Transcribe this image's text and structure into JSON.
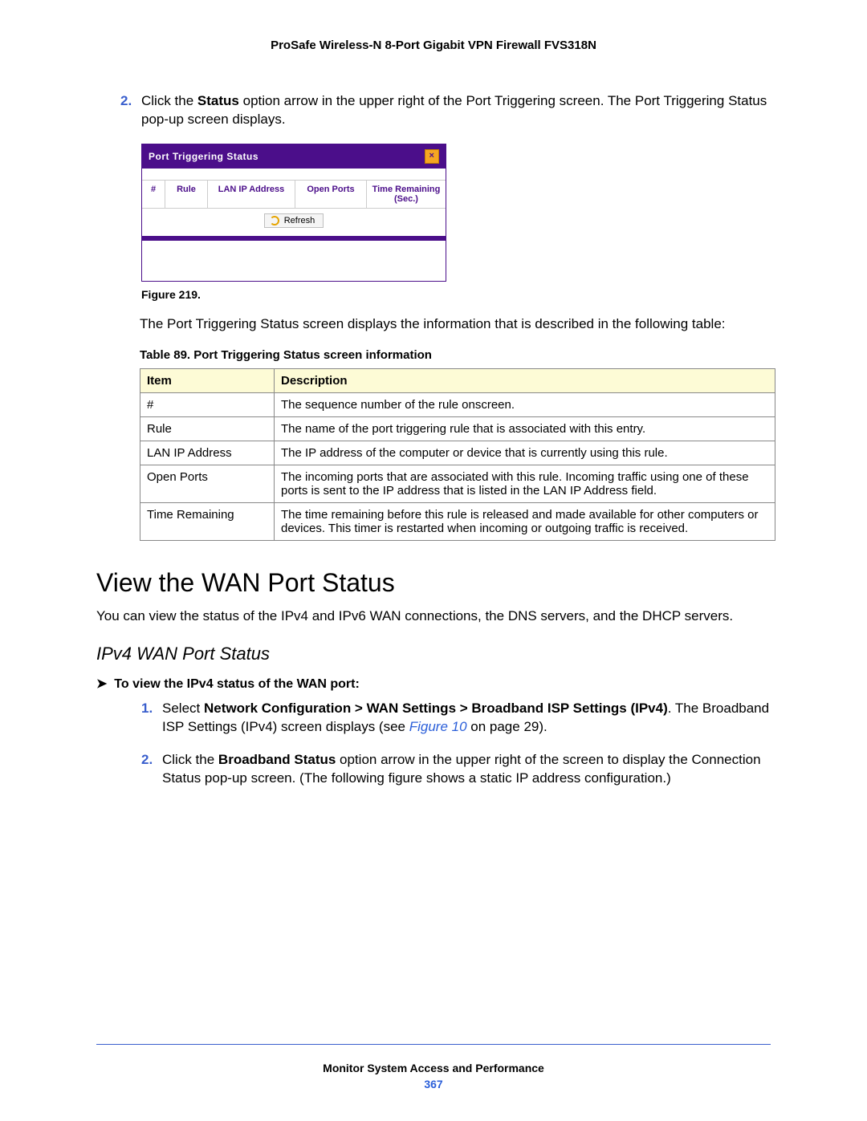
{
  "doc_title": "ProSafe Wireless-N 8-Port Gigabit VPN Firewall FVS318N",
  "step2": {
    "num": "2.",
    "pre": "Click the ",
    "bold": "Status",
    "post": " option arrow in the upper right of the Port Triggering screen. The Port Triggering Status pop-up screen displays."
  },
  "popup": {
    "title": "Port Triggering Status",
    "close": "×",
    "cols": {
      "hash": "#",
      "rule": "Rule",
      "ip": "LAN IP Address",
      "open": "Open Ports",
      "time": "Time Remaining (Sec.)"
    },
    "refresh": "Refresh"
  },
  "figure_caption": "Figure 219.",
  "para_after_figure": "The Port Triggering Status screen displays the information that is described in the following table:",
  "table_caption": "Table 89.  Port Triggering Status screen information",
  "info_table": {
    "head": {
      "item": "Item",
      "desc": "Description"
    },
    "rows": [
      {
        "item": "#",
        "desc": "The sequence number of the rule onscreen."
      },
      {
        "item": "Rule",
        "desc": "The name of the port triggering rule that is associated with this entry."
      },
      {
        "item": "LAN IP Address",
        "desc": "The IP address of the computer or device that is currently using this rule."
      },
      {
        "item": "Open Ports",
        "desc": "The incoming ports that are associated with this rule. Incoming traffic using one of these ports is sent to the IP address that is listed in the LAN IP Address field."
      },
      {
        "item": "Time Remaining",
        "desc": "The time remaining before this rule is released and made available for other computers or devices. This timer is restarted when incoming or outgoing traffic is received."
      }
    ]
  },
  "section_title": "View the WAN Port Status",
  "section_intro": "You can view the status of the IPv4 and IPv6 WAN connections, the DNS servers, and the DHCP servers.",
  "subsection": "IPv4 WAN Port Status",
  "proc_head_arrow": "➤",
  "proc_head": "To view the IPv4 status of the WAN port:",
  "proc_steps": {
    "s1": {
      "num": "1.",
      "pre": "Select ",
      "bold": "Network Configuration > WAN Settings > Broadband ISP Settings (IPv4)",
      "line2a": ". The Broadband ISP Settings (IPv4) screen displays (see ",
      "link": "Figure 10",
      "line2b": " on page 29)."
    },
    "s2": {
      "num": "2.",
      "pre": "Click the ",
      "bold": "Broadband Status",
      "post": " option arrow in the upper right of the screen to display the Connection Status pop-up screen. (The following figure shows a static IP address configuration.)"
    }
  },
  "footer_text": "Monitor System Access and Performance",
  "footer_page": "367"
}
